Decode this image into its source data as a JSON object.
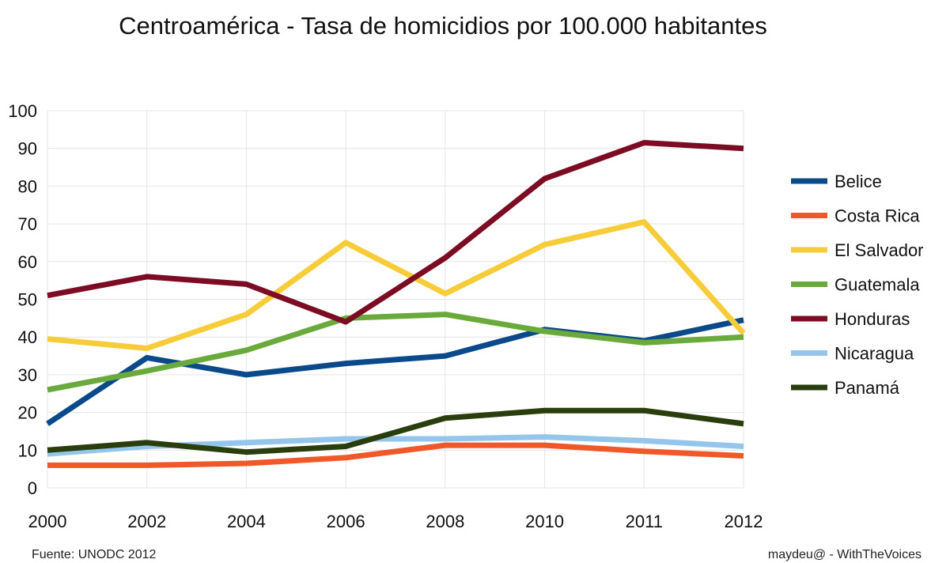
{
  "chart_data": {
    "type": "line",
    "title": "Centroamérica - Tasa de homicidios por 100.000 habitantes",
    "xlabel": "",
    "ylabel": "",
    "categories": [
      "2000",
      "2002",
      "2004",
      "2006",
      "2008",
      "2010",
      "2011",
      "2012"
    ],
    "ylim": [
      0,
      100
    ],
    "yticks": [
      0,
      10,
      20,
      30,
      40,
      50,
      60,
      70,
      80,
      90,
      100
    ],
    "grid": true,
    "legend_position": "right",
    "series": [
      {
        "name": "Belice",
        "color": "#0a4a8a",
        "values": [
          17,
          34.5,
          30,
          33,
          35,
          42,
          39,
          44.5
        ]
      },
      {
        "name": "Costa Rica",
        "color": "#f0582a",
        "values": [
          6,
          6,
          6.5,
          8,
          11.3,
          11.3,
          9.7,
          8.5
        ]
      },
      {
        "name": "El Salvador",
        "color": "#f6cd39",
        "values": [
          39.5,
          37,
          46,
          65,
          51.5,
          64.5,
          70.5,
          41
        ]
      },
      {
        "name": "Guatemala",
        "color": "#6aaa3c",
        "values": [
          26,
          31,
          36.5,
          45,
          46,
          41.5,
          38.5,
          40
        ]
      },
      {
        "name": "Honduras",
        "color": "#7c0c24",
        "values": [
          51,
          56,
          54,
          44,
          61,
          82,
          91.5,
          90
        ]
      },
      {
        "name": "Nicaragua",
        "color": "#94c6ec",
        "values": [
          9,
          11,
          12,
          13,
          13,
          13.5,
          12.5,
          11
        ]
      },
      {
        "name": "Panamá",
        "color": "#2a3d0c",
        "values": [
          10,
          12,
          9.5,
          11,
          18.5,
          20.5,
          20.5,
          17
        ]
      }
    ]
  },
  "footer": {
    "source": "Fuente: UNODC  2012",
    "credit": "maydeu@ - WithTheVoices"
  }
}
